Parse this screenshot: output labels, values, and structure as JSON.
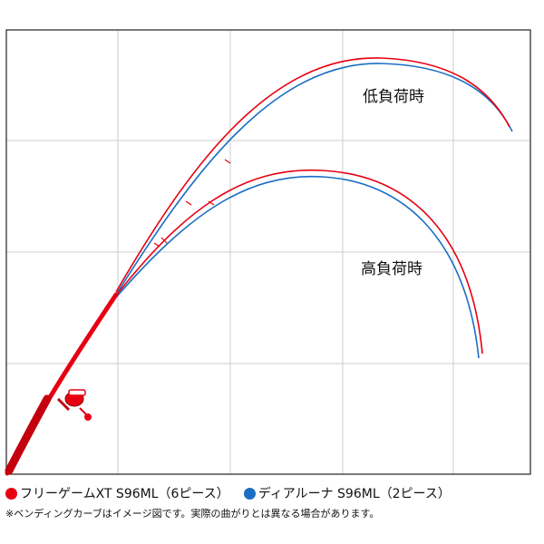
{
  "labels": {
    "low_load": "低負荷時",
    "high_load": "高負荷時"
  },
  "legend": [
    {
      "label": "フリーゲームXT S96ML（6ピース）",
      "color": "#e60012"
    },
    {
      "label": "ディアルーナ S96ML（2ピース）",
      "color": "#1a6fc4"
    }
  ],
  "note": "※ベンディングカーブはイメージ図です。実際の曲がりとは異なる場合があります。",
  "colors": {
    "grid": "#cccccc",
    "border": "#222222",
    "rod_red": "#e60012",
    "rod_blue": "#1a6fc4"
  }
}
